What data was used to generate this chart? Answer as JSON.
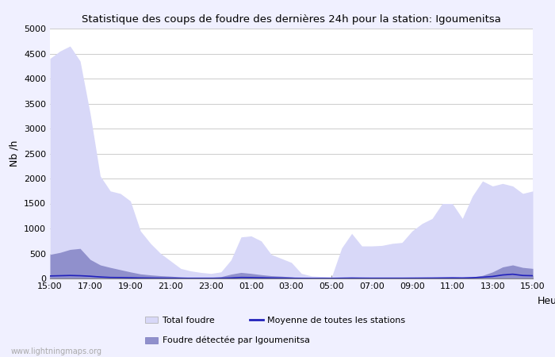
{
  "title": "Statistique des coups de foudre des dernières 24h pour la station: Igoumenitsa",
  "xlabel": "Heure",
  "ylabel": "Nb /h",
  "xlim": [
    0,
    48
  ],
  "ylim": [
    0,
    5000
  ],
  "yticks": [
    0,
    500,
    1000,
    1500,
    2000,
    2500,
    3000,
    3500,
    4000,
    4500,
    5000
  ],
  "xtick_labels": [
    "15:00",
    "17:00",
    "19:00",
    "21:00",
    "23:00",
    "01:00",
    "03:00",
    "05:00",
    "07:00",
    "09:00",
    "11:00",
    "13:00",
    "15:00"
  ],
  "xtick_positions": [
    0,
    4,
    8,
    12,
    16,
    20,
    24,
    28,
    32,
    36,
    40,
    44,
    48
  ],
  "bg_color": "#f0f0ff",
  "plot_bg_color": "#ffffff",
  "grid_color": "#cccccc",
  "total_foudre_color": "#d8d8f8",
  "igoumenitsa_color": "#9090cc",
  "moyenne_color": "#2222bb",
  "watermark": "www.lightningmaps.org",
  "total_foudre": [
    4400,
    4550,
    4650,
    4350,
    3300,
    2050,
    1750,
    1700,
    1550,
    950,
    700,
    500,
    350,
    200,
    150,
    120,
    100,
    130,
    370,
    830,
    850,
    750,
    480,
    400,
    320,
    100,
    50,
    40,
    30,
    610,
    900,
    650,
    650,
    660,
    700,
    720,
    950,
    1100,
    1200,
    1500,
    1500,
    1200,
    1650,
    1950,
    1850,
    1900,
    1850,
    1700,
    1750
  ],
  "igoumenitsa": [
    480,
    520,
    580,
    600,
    380,
    270,
    220,
    175,
    130,
    90,
    70,
    55,
    45,
    30,
    20,
    20,
    20,
    35,
    85,
    120,
    100,
    75,
    55,
    45,
    30,
    10,
    5,
    5,
    5,
    10,
    15,
    10,
    10,
    10,
    10,
    10,
    10,
    10,
    10,
    10,
    10,
    10,
    30,
    60,
    130,
    230,
    270,
    220,
    200
  ],
  "moyenne": [
    50,
    55,
    60,
    55,
    45,
    30,
    20,
    18,
    14,
    10,
    8,
    6,
    5,
    4,
    4,
    4,
    4,
    5,
    10,
    20,
    18,
    14,
    10,
    8,
    5,
    3,
    2,
    2,
    2,
    5,
    8,
    6,
    5,
    5,
    5,
    5,
    6,
    7,
    8,
    10,
    12,
    10,
    15,
    25,
    40,
    70,
    85,
    60,
    55
  ]
}
